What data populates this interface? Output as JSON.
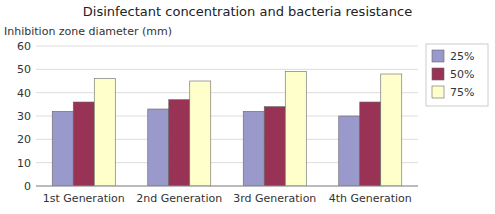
{
  "chart_data": {
    "type": "bar",
    "title": "Disinfectant concentration and bacteria resistance",
    "y_label": "Inhibition zone diameter (mm)",
    "categories": [
      "1st Generation",
      "2nd Generation",
      "3rd Generation",
      "4th Generation"
    ],
    "series": [
      {
        "name": "25%",
        "color": "#9999cc",
        "values": [
          32,
          33,
          32,
          30
        ]
      },
      {
        "name": "50%",
        "color": "#993355",
        "values": [
          36,
          37,
          34,
          36
        ]
      },
      {
        "name": "75%",
        "color": "#ffffcc",
        "values": [
          46,
          45,
          49,
          48
        ]
      }
    ],
    "ylim": [
      0,
      60
    ],
    "yticks": [
      0,
      10,
      20,
      30,
      40,
      50,
      60
    ],
    "grid": true,
    "legend": "right"
  }
}
